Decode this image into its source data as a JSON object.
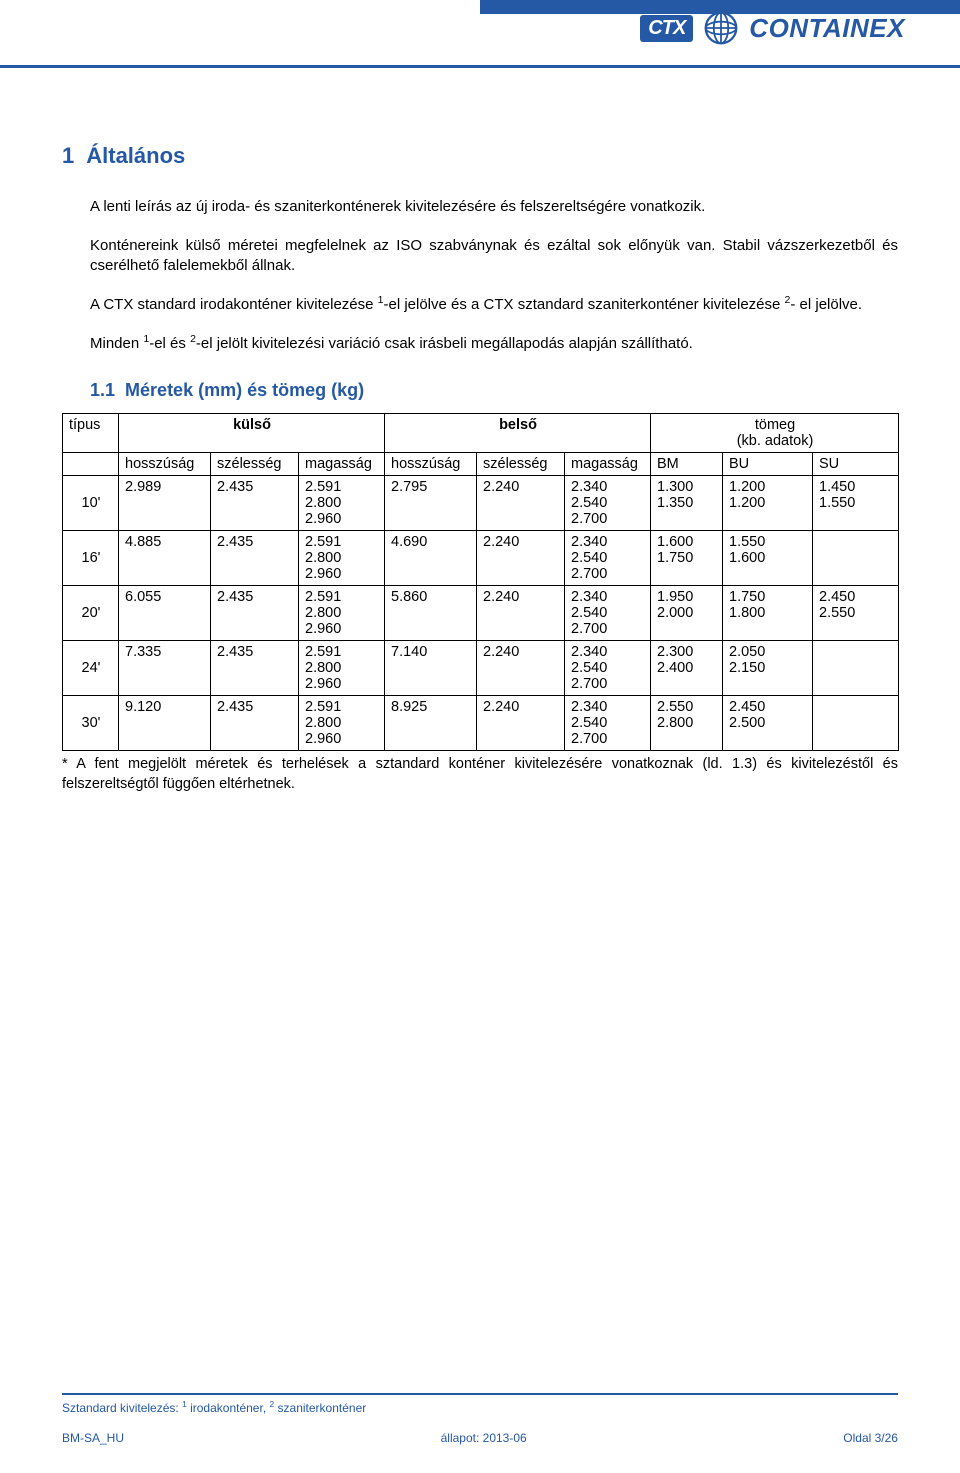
{
  "header": {
    "logo_badge": "CTX",
    "logo_text": "CONTAINEX",
    "brand_color": "#2558a5"
  },
  "section": {
    "number": "1",
    "title": "Általános",
    "para1": "A lenti leírás az új iroda- és szaniterkonténerek kivitelezésére és felszereltségére vonatkozik.",
    "para2": "Konténereink külső méretei megfelelnek az ISO szabványnak és ezáltal sok előnyük van. Stabil vázszerkezetből és cserélhető falelemekből állnak.",
    "para3_pre": "A CTX standard irodakonténer kivitelezése ",
    "para3_mid": "-el jelölve és a CTX sztandard szaniterkonténer kivitelezése ",
    "para3_post": "- el jelölve.",
    "para4_pre": "Minden ",
    "para4_mid": "-el és ",
    "para4_post": "-el jelölt kivitelezési variáció csak irásbeli megállapodás alapján szállítható.",
    "sup1": "1",
    "sup2": "2",
    "subsection_number": "1.1",
    "subsection_title": "Méretek (mm) és tömeg (kg)"
  },
  "table": {
    "hdr_type": "típus",
    "hdr_outer": "külső",
    "hdr_inner": "belső",
    "hdr_weight": "tömeg\n(kb. adatok)",
    "sub_length": "hosszúság",
    "sub_width": "szélesség",
    "sub_height": "magasság",
    "sub_bm": "BM",
    "sub_bu": "BU",
    "sub_su": "SU",
    "rows": [
      {
        "type": "10'",
        "ol": "2.989",
        "ow": "2.435",
        "oh": [
          "2.591",
          "2.800",
          "2.960"
        ],
        "il": "2.795",
        "iw": "2.240",
        "ih": [
          "2.340",
          "2.540",
          "2.700"
        ],
        "bm": [
          "1.300",
          "1.350"
        ],
        "bu": [
          "1.200",
          "1.200"
        ],
        "su": [
          "1.450",
          "1.550"
        ]
      },
      {
        "type": "16'",
        "ol": "4.885",
        "ow": "2.435",
        "oh": [
          "2.591",
          "2.800",
          "2.960"
        ],
        "il": "4.690",
        "iw": "2.240",
        "ih": [
          "2.340",
          "2.540",
          "2.700"
        ],
        "bm": [
          "1.600",
          "1.750"
        ],
        "bu": [
          "1.550",
          "1.600"
        ],
        "su": []
      },
      {
        "type": "20'",
        "ol": "6.055",
        "ow": "2.435",
        "oh": [
          "2.591",
          "2.800",
          "2.960"
        ],
        "il": "5.860",
        "iw": "2.240",
        "ih": [
          "2.340",
          "2.540",
          "2.700"
        ],
        "bm": [
          "1.950",
          "2.000"
        ],
        "bu": [
          "1.750",
          "1.800"
        ],
        "su": [
          "2.450",
          "2.550"
        ]
      },
      {
        "type": "24'",
        "ol": "7.335",
        "ow": "2.435",
        "oh": [
          "2.591",
          "2.800",
          "2.960"
        ],
        "il": "7.140",
        "iw": "2.240",
        "ih": [
          "2.340",
          "2.540",
          "2.700"
        ],
        "bm": [
          "2.300",
          "2.400"
        ],
        "bu": [
          "2.050",
          "2.150"
        ],
        "su": []
      },
      {
        "type": "30'",
        "ol": "9.120",
        "ow": "2.435",
        "oh": [
          "2.591",
          "2.800",
          "2.960"
        ],
        "il": "8.925",
        "iw": "2.240",
        "ih": [
          "2.340",
          "2.540",
          "2.700"
        ],
        "bm": [
          "2.550",
          "2.800"
        ],
        "bu": [
          "2.450",
          "2.500"
        ],
        "su": []
      }
    ],
    "footnote": "* A fent megjelölt méretek és terhelések a sztandard konténer kivitelezésére vonatkoznak (ld. 1.3) és kivitelezéstől és felszereltségtől függően eltérhetnek."
  },
  "footer": {
    "line1_label": "Sztandard kivitelezés:",
    "line1_item1": "irodakonténer,",
    "line1_item2": "szaniterkonténer",
    "doc_code": "BM-SA_HU",
    "status": "állapot: 2013-06",
    "page": "Oldal 3/26"
  },
  "style": {
    "text_color": "#000000",
    "brand_blue": "#2558a5",
    "page_bg": "#ffffff",
    "body_fontsize": 15,
    "title_fontsize": 22,
    "subsection_fontsize": 18,
    "table_fontsize": 14.5,
    "footer_fontsize": 12,
    "table_border": "#000000"
  }
}
